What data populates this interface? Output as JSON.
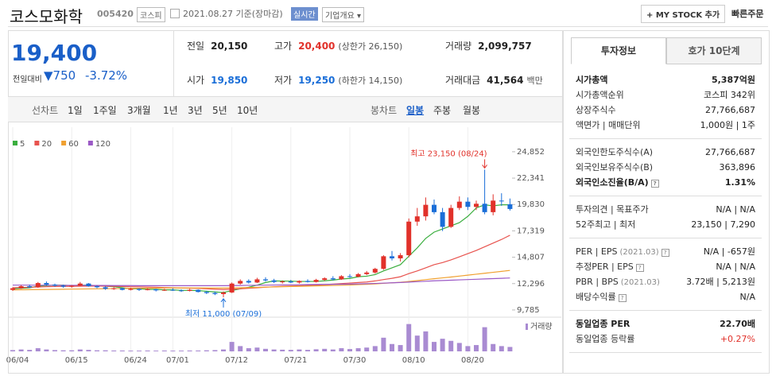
{
  "header": {
    "title": "코스모화학",
    "code": "005420",
    "market": "코스피",
    "date": "2021.08.27 기준(장마감)",
    "realtime": "실시간",
    "overview": "기업개요 ▾",
    "my_stock": "+ MY STOCK 추가",
    "quick_order": "빠른주문"
  },
  "summary": {
    "price": "19,400",
    "change_label": "전일대비",
    "change": "▼750",
    "change_rate": "-3.72%",
    "rows": [
      [
        {
          "label": "전일",
          "value": "20,150"
        },
        {
          "label": "고가",
          "value": "20,400",
          "note": "(상한가 26,150)",
          "color": "#e1312a"
        },
        {
          "label": "거래량",
          "value": "2,099,757"
        }
      ],
      [
        {
          "label": "시가",
          "value": "19,850",
          "color": "#1a6ed8"
        },
        {
          "label": "저가",
          "value": "19,250",
          "note": "(하한가 14,150)",
          "color": "#1a6ed8"
        },
        {
          "label": "거래대금",
          "value": "41,564",
          "note": "백만"
        }
      ]
    ]
  },
  "tabs": {
    "line_chart": "선차트",
    "line_periods": [
      "1일",
      "1주일",
      "3개월",
      "1년",
      "3년",
      "5년",
      "10년"
    ],
    "candle_chart": "봉차트",
    "candle_periods": [
      "일봉",
      "주봉",
      "월봉"
    ],
    "active_candle_period": 0
  },
  "chart_data": {
    "type": "candlestick",
    "categories": [
      "06/04",
      null,
      null,
      null,
      null,
      null,
      null,
      "06/15",
      null,
      null,
      null,
      null,
      null,
      null,
      "06/24",
      null,
      null,
      null,
      null,
      "07/01",
      null,
      null,
      null,
      null,
      null,
      null,
      "07/12",
      null,
      null,
      null,
      null,
      null,
      null,
      "07/21",
      null,
      null,
      null,
      null,
      null,
      null,
      "07/30",
      null,
      null,
      null,
      null,
      null,
      null,
      "08/10",
      null,
      null,
      null,
      null,
      null,
      null,
      "08/20",
      null,
      null,
      null,
      null,
      null
    ],
    "open": [
      11700,
      11850,
      12050,
      11950,
      12350,
      12200,
      12100,
      12000,
      12100,
      12300,
      12050,
      11950,
      11800,
      11850,
      11700,
      11800,
      11700,
      11750,
      11650,
      11700,
      11650,
      11600,
      11700,
      11500,
      11400,
      11300,
      11450,
      12300,
      12550,
      12400,
      12700,
      12600,
      12450,
      12500,
      12400,
      12550,
      12450,
      12650,
      12800,
      12700,
      13000,
      12950,
      13200,
      13350,
      13700,
      14900,
      14700,
      15000,
      18200,
      18700,
      19800,
      19100,
      17700,
      19500,
      20100,
      19600,
      19900,
      19100,
      20200,
      19850
    ],
    "high": [
      11950,
      12150,
      12200,
      12450,
      12500,
      12300,
      12200,
      12150,
      12450,
      12350,
      12150,
      12050,
      11950,
      11900,
      11900,
      11850,
      11850,
      11800,
      11800,
      11850,
      11750,
      11800,
      11750,
      11600,
      11550,
      11550,
      12400,
      12700,
      12700,
      12850,
      12900,
      12750,
      12600,
      12650,
      12600,
      12700,
      12750,
      12900,
      13000,
      13100,
      13200,
      13300,
      13500,
      13800,
      15000,
      15400,
      15200,
      18500,
      19500,
      20500,
      20300,
      19500,
      19800,
      20600,
      20500,
      20200,
      23150,
      20800,
      20900,
      20400
    ],
    "low": [
      11600,
      11800,
      11900,
      11900,
      12100,
      12000,
      11900,
      11900,
      12050,
      12000,
      11850,
      11700,
      11700,
      11650,
      11650,
      11600,
      11650,
      11550,
      11600,
      11600,
      11500,
      11550,
      11450,
      11300,
      11200,
      11000,
      11400,
      12200,
      12300,
      12350,
      12500,
      12350,
      12300,
      12350,
      12300,
      12400,
      12400,
      12550,
      12600,
      12650,
      12850,
      12900,
      13100,
      13250,
      13600,
      14500,
      14400,
      14800,
      17800,
      18300,
      18900,
      17300,
      17600,
      19300,
      19300,
      19300,
      18900,
      18800,
      19700,
      19250
    ],
    "close": [
      11850,
      12050,
      11950,
      12350,
      12200,
      12100,
      12000,
      12100,
      12300,
      12050,
      11950,
      11800,
      11850,
      11700,
      11800,
      11700,
      11750,
      11650,
      11700,
      11650,
      11600,
      11700,
      11500,
      11400,
      11300,
      11450,
      12300,
      12550,
      12400,
      12700,
      12600,
      12450,
      12500,
      12400,
      12550,
      12450,
      12650,
      12800,
      12700,
      13000,
      12950,
      13200,
      13350,
      13700,
      14900,
      14700,
      15000,
      18200,
      18700,
      19800,
      19100,
      17700,
      19500,
      20100,
      19600,
      19900,
      19100,
      20200,
      20150,
      19400
    ],
    "up_color": "#e1312a",
    "down_color": "#1a6ed8",
    "moving_averages": [
      {
        "name": "5",
        "color": "#3aae3e",
        "values": [
          11800,
          11850,
          11900,
          12050,
          12100,
          12150,
          12150,
          12100,
          12150,
          12150,
          12100,
          12050,
          12000,
          11900,
          11800,
          11800,
          11750,
          11750,
          11700,
          11700,
          11650,
          11650,
          11630,
          11570,
          11500,
          11450,
          11630,
          11800,
          11950,
          12150,
          12400,
          12550,
          12540,
          12530,
          12500,
          12500,
          12500,
          12560,
          12630,
          12730,
          12790,
          12950,
          13000,
          13150,
          13500,
          13800,
          14100,
          14900,
          15700,
          16600,
          17200,
          17500,
          17800,
          18100,
          18700,
          19500,
          19800,
          19700,
          19800,
          19800
        ]
      },
      {
        "name": "20",
        "color": "#e8534e",
        "values": [
          11900,
          11920,
          11950,
          11970,
          12000,
          12020,
          12030,
          12040,
          12050,
          12060,
          12060,
          12050,
          12040,
          12020,
          12000,
          11990,
          11970,
          11950,
          11920,
          11900,
          11880,
          11860,
          11840,
          11800,
          11760,
          11730,
          11760,
          11800,
          11850,
          11900,
          11950,
          12000,
          12030,
          12060,
          12090,
          12120,
          12150,
          12200,
          12250,
          12300,
          12350,
          12400,
          12450,
          12550,
          12680,
          12800,
          12950,
          13250,
          13500,
          13800,
          14100,
          14300,
          14550,
          14850,
          15150,
          15450,
          15800,
          16150,
          16500,
          16900
        ]
      },
      {
        "name": "60",
        "color": "#f0a030",
        "values": [
          11700,
          11710,
          11720,
          11730,
          11740,
          11750,
          11760,
          11770,
          11780,
          11790,
          11800,
          11810,
          11820,
          11830,
          11840,
          11850,
          11860,
          11870,
          11880,
          11880,
          11880,
          11880,
          11880,
          11880,
          11870,
          11870,
          11880,
          11900,
          11920,
          11940,
          11960,
          11980,
          12000,
          12020,
          12040,
          12060,
          12080,
          12100,
          12120,
          12140,
          12160,
          12200,
          12230,
          12270,
          12320,
          12370,
          12420,
          12500,
          12580,
          12670,
          12760,
          12840,
          12920,
          13010,
          13100,
          13190,
          13280,
          13370,
          13460,
          13550
        ]
      },
      {
        "name": "120",
        "color": "#9b59c6",
        "values": [
          12150,
          12150,
          12150,
          12140,
          12140,
          12140,
          12130,
          12130,
          12130,
          12120,
          12120,
          12120,
          12110,
          12110,
          12110,
          12100,
          12100,
          12100,
          12100,
          12100,
          12100,
          12100,
          12100,
          12100,
          12100,
          12100,
          12110,
          12120,
          12130,
          12140,
          12150,
          12160,
          12170,
          12180,
          12190,
          12200,
          12210,
          12220,
          12230,
          12240,
          12250,
          12270,
          12290,
          12310,
          12340,
          12370,
          12400,
          12440,
          12480,
          12520,
          12560,
          12590,
          12620,
          12650,
          12680,
          12710,
          12740,
          12770,
          12800,
          12830
        ]
      }
    ],
    "volume": {
      "name": "거래량",
      "color": "#a98bd2",
      "ylim": [
        0,
        14000000
      ],
      "values": [
        600000,
        900000,
        700000,
        1500000,
        900000,
        600000,
        500000,
        500000,
        900000,
        700000,
        500000,
        500000,
        400000,
        400000,
        350000,
        350000,
        400000,
        350000,
        400000,
        350000,
        350000,
        400000,
        400000,
        500000,
        600000,
        900000,
        4500000,
        2500000,
        1500000,
        1800000,
        1200000,
        900000,
        800000,
        700000,
        900000,
        700000,
        1000000,
        1200000,
        900000,
        1500000,
        1100000,
        1500000,
        1800000,
        2500000,
        6500000,
        3500000,
        3000000,
        13000000,
        7500000,
        9500000,
        4500000,
        6000000,
        5000000,
        4000000,
        2500000,
        3000000,
        11500000,
        3500000,
        2500000,
        2099757
      ]
    },
    "ylim": [
      9250,
      25450
    ],
    "yticks": [
      {
        "value": 24852,
        "label": "24,852"
      },
      {
        "value": 22341,
        "label": "22,341"
      },
      {
        "value": 19830,
        "label": "19,830"
      },
      {
        "value": 17319,
        "label": "17,319"
      },
      {
        "value": 14807,
        "label": "14,807"
      },
      {
        "value": 12296,
        "label": "12,296"
      },
      {
        "value": 9785,
        "label": "9,785"
      }
    ],
    "grid": true,
    "annotations": [
      {
        "text": "최고 23,150 (08/24)",
        "kind": "high",
        "color": "#e1312a"
      },
      {
        "text": "최저 11,000 (07/09)",
        "kind": "low",
        "color": "#1a6ed8"
      }
    ]
  },
  "investment": {
    "tabs": [
      "투자정보",
      "호가 10단계"
    ],
    "active_tab": 0,
    "sections": [
      [
        {
          "label": "시가총액",
          "value": "5,387억원",
          "bold": true
        },
        {
          "label": "시가총액순위",
          "value": "코스피 342위"
        },
        {
          "label": "상장주식수",
          "value": "27,766,687"
        },
        {
          "label": "액면가 | 매매단위",
          "value": "1,000원 | 1주"
        }
      ],
      [
        {
          "label": "외국인한도주식수(A)",
          "value": "27,766,687"
        },
        {
          "label": "외국인보유주식수(B)",
          "value": "363,896"
        },
        {
          "label": "외국인소진율(B/A)",
          "value": "1.31%",
          "bold": true,
          "help": true
        }
      ],
      [
        {
          "label": "투자의견 | 목표주가",
          "value": "N/A | N/A"
        },
        {
          "label": "52주최고 | 최저",
          "value": "23,150 | 7,290"
        }
      ],
      [
        {
          "label": "PER | EPS",
          "sub": "(2021.03)",
          "value": "N/A | -657원",
          "help": true
        },
        {
          "label": "추정PER | EPS",
          "value": "N/A | N/A",
          "help": true
        },
        {
          "label": "PBR | BPS",
          "sub": "(2021.03)",
          "value": "3.72배 | 5,213원"
        },
        {
          "label": "배당수익률",
          "value": "N/A",
          "help": true
        }
      ],
      [
        {
          "label": "동일업종 PER",
          "value": "22.70배",
          "bold": true
        },
        {
          "label": "동일업종 등락률",
          "value": "+0.27%",
          "color": "#e1312a"
        }
      ]
    ]
  }
}
